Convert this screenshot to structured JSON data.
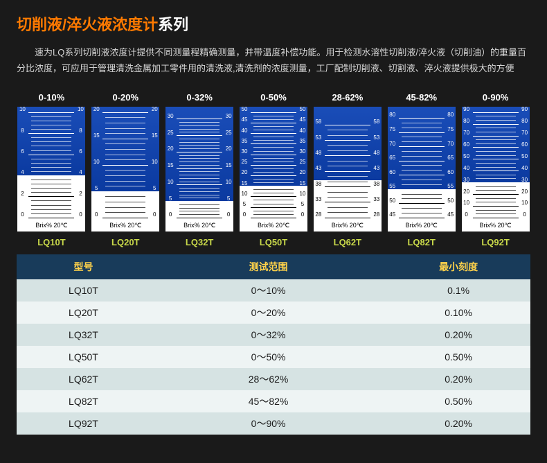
{
  "title": {
    "orange": "切削液/淬火液浓度计",
    "white": "系列"
  },
  "description": "速为LQ系列切削液浓度计提供不同测量程精确测量，并带温度补偿功能。用于检测水溶性切削液/淬火液（切削油）的重量百分比浓度，可应用于管理清洗金属加工零件用的清洗液,清洗剂的浓度测量，工厂配制切削液、切割液、淬火液提供极大的方便",
  "brix_label": "Brix% 20℃",
  "scales": [
    {
      "range": "0-10%",
      "model": "LQ10T",
      "min": 0,
      "max": 10,
      "blue_from": 4,
      "major_step": 2,
      "minor": 4
    },
    {
      "range": "0-20%",
      "model": "LQ20T",
      "min": 0,
      "max": 20,
      "blue_from": 5,
      "major_step": 5,
      "minor": 4
    },
    {
      "range": "0-32%",
      "model": "LQ32T",
      "min": 0,
      "max": 32,
      "blue_from": 5,
      "major_step": 5,
      "minor": 4
    },
    {
      "range": "0-50%",
      "model": "LQ50T",
      "min": 0,
      "max": 50,
      "blue_from": 15,
      "major_step": 5,
      "minor": 2
    },
    {
      "range": "28-62%",
      "model": "LQ62T",
      "min": 28,
      "max": 62,
      "blue_from": 40,
      "major_step": 5,
      "minor": 2
    },
    {
      "range": "45-82%",
      "model": "LQ82T",
      "min": 45,
      "max": 82,
      "blue_from": 55,
      "major_step": 5,
      "minor": 2
    },
    {
      "range": "0-90%",
      "model": "LQ92T",
      "min": 0,
      "max": 90,
      "blue_from": 30,
      "major_step": 10,
      "minor": 2
    }
  ],
  "table": {
    "headers": {
      "model": "型号",
      "range": "测试范围",
      "grad": "最小刻度"
    },
    "rows": [
      {
        "model": "LQ10T",
        "range": "0～10%",
        "grad": "0.1%"
      },
      {
        "model": "LQ20T",
        "range": "0～20%",
        "grad": "0.10%"
      },
      {
        "model": "LQ32T",
        "range": "0～32%",
        "grad": "0.20%"
      },
      {
        "model": "LQ50T",
        "range": "0～50%",
        "grad": "0.50%"
      },
      {
        "model": "LQ62T",
        "range": "28～62%",
        "grad": "0.20%"
      },
      {
        "model": "LQ82T",
        "range": "45～82%",
        "grad": "0.50%"
      },
      {
        "model": "LQ92T",
        "range": "0～90%",
        "grad": "0.20%"
      }
    ]
  },
  "colors": {
    "bg": "#1a1a1a",
    "orange": "#ff7a00",
    "yellow": "#ffd24a",
    "lime": "#c9d94a",
    "table_header_bg": "#183b5a",
    "row_odd": "#d6e3e3",
    "row_even": "#eef4f4",
    "blue_top": "#1a4db8",
    "blue_bottom": "#0b3aa0"
  }
}
